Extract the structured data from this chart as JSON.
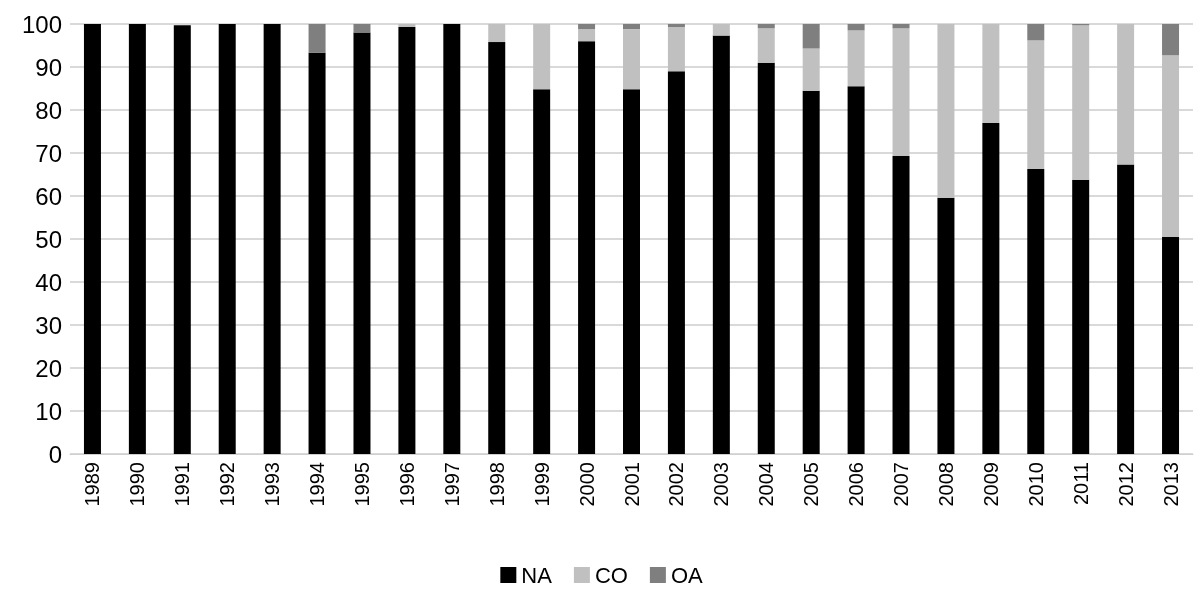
{
  "chart_data": {
    "type": "bar",
    "stacked": true,
    "categories": [
      "1989",
      "1990",
      "1991",
      "1992",
      "1993",
      "1994",
      "1995",
      "1996",
      "1997",
      "1998",
      "1999",
      "2000",
      "2001",
      "2002",
      "2003",
      "2004",
      "2005",
      "2006",
      "2007",
      "2008",
      "2009",
      "2010",
      "2011",
      "2012",
      "2013"
    ],
    "series": [
      {
        "name": "NA",
        "color": "#000000",
        "values": [
          100,
          100,
          99.7,
          100,
          100,
          93.3,
          98,
          99.3,
          100,
          95.8,
          84.8,
          96,
          84.8,
          89,
          97.3,
          91,
          84.5,
          85.5,
          69.3,
          59.6,
          77,
          66.3,
          63.8,
          67.3,
          50.5
        ]
      },
      {
        "name": "CO",
        "color": "#c0c0c0",
        "values": [
          0,
          0,
          null,
          0,
          0,
          0,
          0,
          0.7,
          0,
          4.2,
          15.2,
          2.8,
          14,
          10.3,
          2.7,
          8,
          9.8,
          13,
          29.7,
          40.4,
          23,
          29.9,
          35.9,
          32.7,
          42.2
        ]
      },
      {
        "name": "OA",
        "color": "#7f7f7f",
        "values": [
          0,
          0,
          0,
          0,
          0,
          6.7,
          2,
          0,
          0,
          0,
          0,
          1.2,
          1.2,
          0.7,
          0,
          1,
          5.7,
          1.5,
          1,
          0,
          0,
          3.8,
          0.3,
          0,
          7.3
        ]
      }
    ],
    "ylim": [
      0,
      100
    ],
    "yticks": [
      0,
      10,
      20,
      30,
      40,
      50,
      60,
      70,
      80,
      90,
      100
    ],
    "grid": "y",
    "legend": "bottom"
  }
}
